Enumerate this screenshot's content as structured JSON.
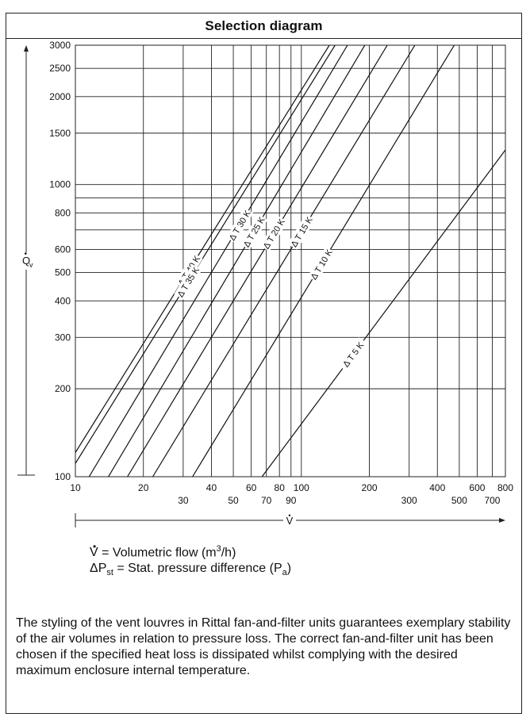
{
  "title": "Selection diagram",
  "chart_data": {
    "type": "line",
    "title": "Selection diagram",
    "x_scale": "log",
    "y_scale": "log",
    "xlim": [
      10,
      800
    ],
    "ylim": [
      100,
      3000
    ],
    "x_ticks": [
      10,
      20,
      30,
      40,
      50,
      60,
      70,
      80,
      90,
      100,
      200,
      300,
      400,
      500,
      600,
      700,
      800
    ],
    "y_ticks": [
      100,
      200,
      300,
      400,
      500,
      600,
      800,
      1000,
      1500,
      2000,
      2500,
      3000
    ],
    "extra_gridlines_y": [
      900,
      700
    ],
    "grid": true,
    "xlabel": "V̇",
    "ylabel": "Qv",
    "series": [
      {
        "name": "Δ T 40 K",
        "delta_t": 40,
        "x": [
          10,
          133
        ],
        "y": [
          121,
          3000
        ]
      },
      {
        "name": "Δ T 35 K",
        "delta_t": 35,
        "x": [
          10,
          141
        ],
        "y": [
          111,
          3000
        ]
      },
      {
        "name": "Δ T 30 K",
        "delta_t": 30,
        "x": [
          11.5,
          160
        ],
        "y": [
          100,
          3000
        ]
      },
      {
        "name": "Δ T 25 K",
        "delta_t": 25,
        "x": [
          14,
          191
        ],
        "y": [
          100,
          3000
        ]
      },
      {
        "name": "Δ T 20 K",
        "delta_t": 20,
        "x": [
          17,
          240
        ],
        "y": [
          100,
          3000
        ]
      },
      {
        "name": "Δ T 15 K",
        "delta_t": 15,
        "x": [
          22,
          318
        ],
        "y": [
          100,
          3000
        ]
      },
      {
        "name": "Δ T 10 K",
        "delta_t": 10,
        "x": [
          33,
          475
        ],
        "y": [
          100,
          3000
        ]
      },
      {
        "name": "Δ T 5 K",
        "delta_t": 5,
        "x": [
          67,
          800
        ],
        "y": [
          100,
          1314
        ]
      }
    ]
  },
  "legend": {
    "v_symbol": "V",
    "v_text": " = Volumetric flow (m",
    "v_sup": "3",
    "v_end": "/h)",
    "p_symbol": "ΔP",
    "p_sub": "st",
    "p_text": " = Stat. pressure difference (P",
    "p_sub2": "a",
    "p_end": ")"
  },
  "note": "The styling of the vent louvres in Rittal fan-and-filter units guarantees exemplary stability of the air volumes in relation to pressure loss. The correct fan-and-filter unit has been chosen if the specified heat loss is dissipated whilst complying with the desired maximum enclosure internal temperature."
}
